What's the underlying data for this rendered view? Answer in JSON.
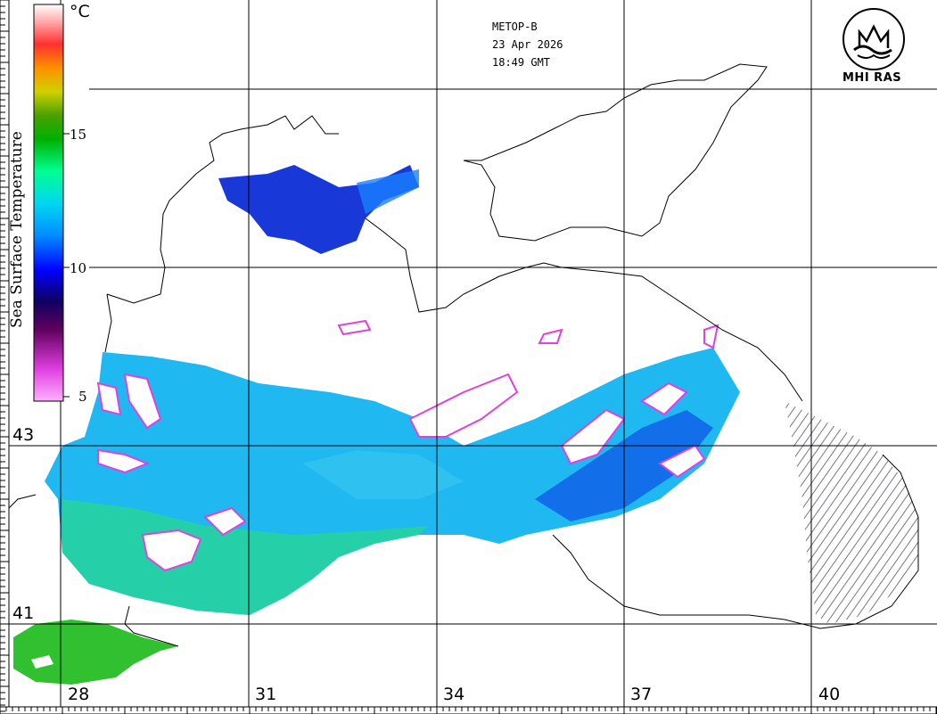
{
  "header": {
    "satellite": "METOP-B",
    "date": "23 Apr 2026",
    "time": "18:49 GMT"
  },
  "logo": {
    "text": "MHI RAS"
  },
  "legend": {
    "title": "Sea Surface Temperature",
    "unit": "°C",
    "ticks": [
      "15",
      "10",
      "5"
    ],
    "colors": [
      "#ff66ff",
      "#800080",
      "#000080",
      "#0000ff",
      "#00bfff",
      "#00ffcc",
      "#00cc00",
      "#228b22",
      "#cccc00",
      "#ff8c00",
      "#ff3030",
      "#ffc0c0",
      "#ffffff"
    ]
  },
  "axes": {
    "longitude_labels": [
      "28",
      "31",
      "34",
      "37",
      "40"
    ],
    "latitude_labels": [
      "43",
      "41"
    ]
  },
  "colors": {
    "water_cyan": "#1fb8f0",
    "water_blue": "#1030e0",
    "water_green": "#20d070",
    "cloud_edge": "#e040e0"
  }
}
